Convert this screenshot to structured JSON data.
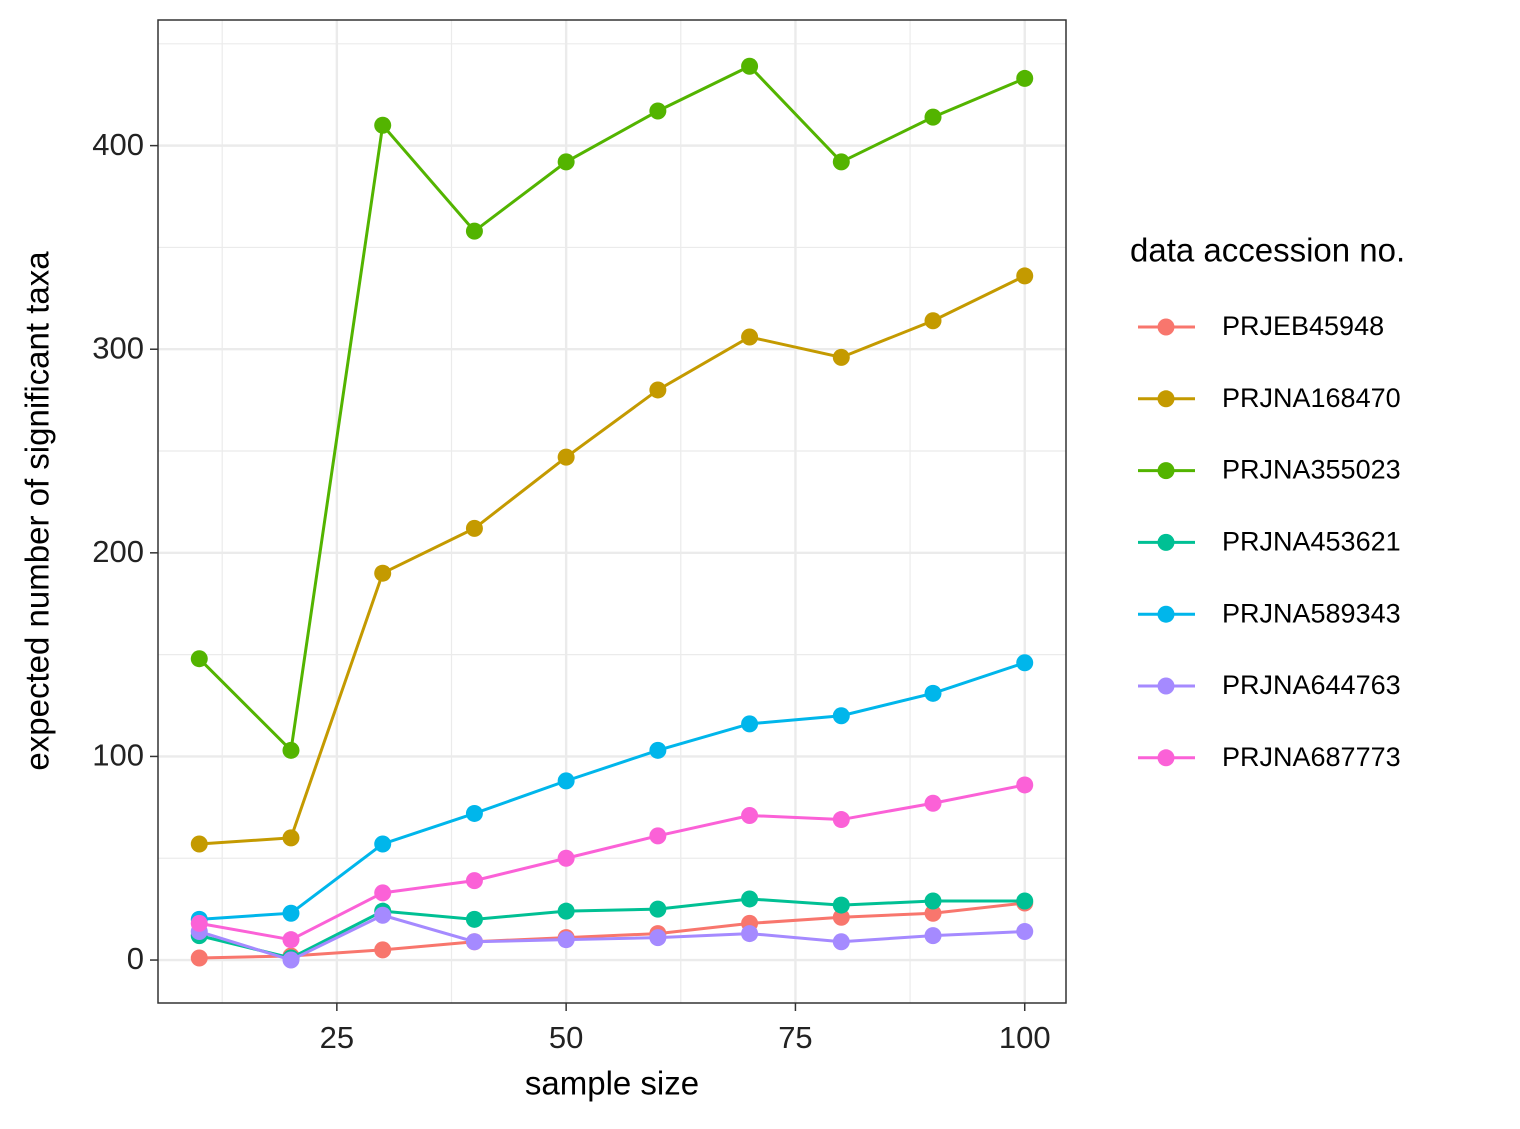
{
  "chart_data": {
    "type": "line",
    "x_label": "sample size",
    "y_label": "expected number of significant taxa",
    "legend_title": "data accession no.",
    "legend_position": "right",
    "grid": true,
    "x": [
      10,
      20,
      30,
      40,
      50,
      60,
      70,
      80,
      90,
      100
    ],
    "xlim": [
      5.5,
      104.5
    ],
    "xticks": [
      25,
      50,
      75,
      100
    ],
    "ylim": [
      -21.1,
      461.7
    ],
    "yticks": [
      0,
      100,
      200,
      300,
      400
    ],
    "series": [
      {
        "name": "PRJEB45948",
        "color": "#F8766D",
        "values": [
          1,
          2,
          5,
          9,
          11,
          13,
          18,
          21,
          23,
          28
        ]
      },
      {
        "name": "PRJNA168470",
        "color": "#C49A00",
        "values": [
          57,
          60,
          190,
          212,
          247,
          280,
          306,
          296,
          314,
          336
        ]
      },
      {
        "name": "PRJNA355023",
        "color": "#53B400",
        "values": [
          148,
          103,
          410,
          358,
          392,
          417,
          439,
          392,
          414,
          433
        ]
      },
      {
        "name": "PRJNA453621",
        "color": "#00C094",
        "values": [
          12,
          1,
          24,
          20,
          24,
          25,
          30,
          27,
          29,
          29
        ]
      },
      {
        "name": "PRJNA589343",
        "color": "#00B6EB",
        "values": [
          20,
          23,
          57,
          72,
          88,
          103,
          116,
          120,
          131,
          146
        ]
      },
      {
        "name": "PRJNA644763",
        "color": "#A58AFF",
        "values": [
          14,
          0,
          22,
          9,
          10,
          11,
          13,
          9,
          12,
          14
        ]
      },
      {
        "name": "PRJNA687773",
        "color": "#FB61D7",
        "values": [
          18,
          10,
          33,
          39,
          50,
          61,
          71,
          69,
          77,
          86
        ]
      }
    ]
  }
}
